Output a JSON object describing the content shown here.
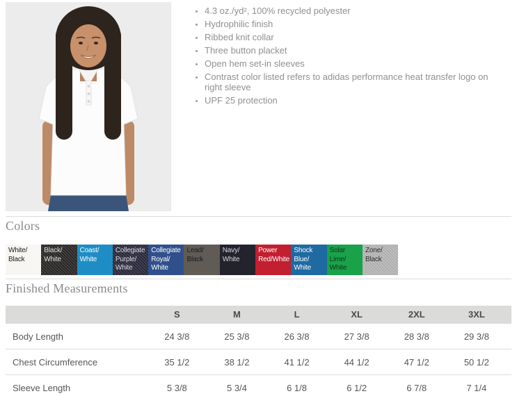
{
  "product": {
    "photo_label": "Model wearing white polo shirt",
    "features": [
      "4.3 oz./yd², 100% recycled polyester",
      "Hydrophilic finish",
      "Ribbed knit collar",
      "Three button placket",
      "Open hem set-in sleeves",
      "Contrast color listed refers to adidas performance heat transfer logo on right sleeve",
      "UPF 25 protection"
    ]
  },
  "colors": {
    "heading": "Colors",
    "swatches": [
      {
        "label": "White/Black",
        "bg": "#f8f6f2",
        "fg": "#1a1a1a",
        "textured": false
      },
      {
        "label": "Black/White",
        "bg": "#2c2a29",
        "fg": "#dededd",
        "textured": true
      },
      {
        "label": "Coast/White",
        "bg": "#1f8dc5",
        "fg": "#ffffff",
        "textured": false
      },
      {
        "label": "Collegiate Purple/White",
        "bg": "#2b2b3e",
        "fg": "#d8d8de",
        "textured": true
      },
      {
        "label": "Collegiate Royal/White",
        "bg": "#30508c",
        "fg": "#ffffff",
        "textured": false
      },
      {
        "label": "Lead/Black",
        "bg": "#605c55",
        "fg": "#1b1b20",
        "textured": false
      },
      {
        "label": "Navy/White",
        "bg": "#23232d",
        "fg": "#d9d9de",
        "textured": false
      },
      {
        "label": "Power Red/White",
        "bg": "#c21f30",
        "fg": "#ffffff",
        "textured": false
      },
      {
        "label": "Shock Blue/White",
        "bg": "#1e6aa1",
        "fg": "#ffffff",
        "textured": false
      },
      {
        "label": "Solar Lime/White",
        "bg": "#19a24a",
        "fg": "#11351c",
        "textured": false
      },
      {
        "label": "Zone/Black",
        "bg": "#bcbcbc",
        "fg": "#2e2e2e",
        "textured": true
      }
    ]
  },
  "measurements": {
    "heading": "Finished Measurements",
    "sizes": [
      "S",
      "M",
      "L",
      "XL",
      "2XL",
      "3XL"
    ],
    "rows": [
      {
        "label": "Body Length",
        "values": [
          "24 3/8",
          "25 3/8",
          "26 3/8",
          "27 3/8",
          "28 3/8",
          "29 3/8"
        ]
      },
      {
        "label": "Chest Circumference",
        "values": [
          "35 1/2",
          "38 1/2",
          "41 1/2",
          "44 1/2",
          "47 1/2",
          "50 1/2"
        ]
      },
      {
        "label": "Sleeve Length",
        "values": [
          "5 3/8",
          "5 3/4",
          "6 1/8",
          "6 1/2",
          "6 7/8",
          "7 1/4"
        ]
      }
    ]
  }
}
